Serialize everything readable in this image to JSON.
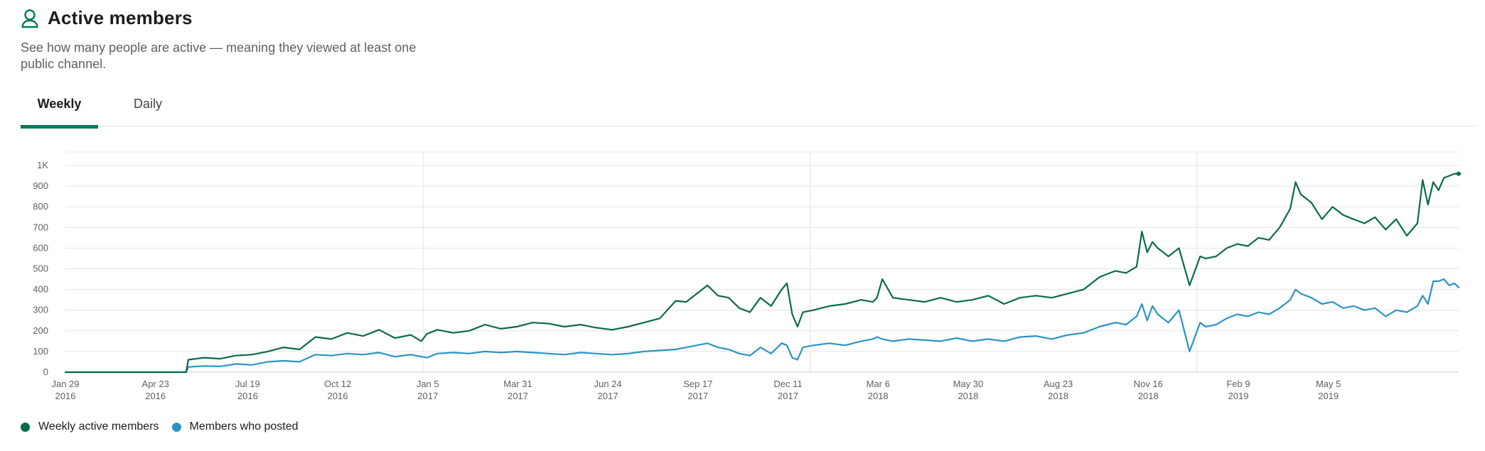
{
  "header": {
    "title": "Active members",
    "icon": "user-icon",
    "subtitle": "See how many people are active — meaning they viewed at least one public channel."
  },
  "tabs": [
    {
      "label": "Weekly",
      "active": true
    },
    {
      "label": "Daily",
      "active": false
    }
  ],
  "colors": {
    "weekly": "#0b6b4a",
    "posted": "#2b94c3",
    "accent": "#007a5a"
  },
  "chart_data": {
    "type": "line",
    "title": "",
    "xlabel": "",
    "ylabel": "",
    "ylim": [
      0,
      1000
    ],
    "y_ticks": [
      {
        "value": 0,
        "label": "0"
      },
      {
        "value": 100,
        "label": "100"
      },
      {
        "value": 200,
        "label": "200"
      },
      {
        "value": 300,
        "label": "300"
      },
      {
        "value": 400,
        "label": "400"
      },
      {
        "value": 500,
        "label": "500"
      },
      {
        "value": 600,
        "label": "600"
      },
      {
        "value": 700,
        "label": "700"
      },
      {
        "value": 800,
        "label": "800"
      },
      {
        "value": 900,
        "label": "900"
      },
      {
        "value": 1000,
        "label": "1K"
      }
    ],
    "xlim": [
      "2016-01-29",
      "2019-09-05"
    ],
    "x_ticks": [
      {
        "date": "2016-01-29",
        "line1": "Jan 29",
        "line2": "2016"
      },
      {
        "date": "2016-04-23",
        "line1": "Apr 23",
        "line2": "2016"
      },
      {
        "date": "2016-07-19",
        "line1": "Jul 19",
        "line2": "2016"
      },
      {
        "date": "2016-10-12",
        "line1": "Oct 12",
        "line2": "2016"
      },
      {
        "date": "2017-01-05",
        "line1": "Jan 5",
        "line2": "2017"
      },
      {
        "date": "2017-03-31",
        "line1": "Mar 31",
        "line2": "2017"
      },
      {
        "date": "2017-06-24",
        "line1": "Jun 24",
        "line2": "2017"
      },
      {
        "date": "2017-09-17",
        "line1": "Sep 17",
        "line2": "2017"
      },
      {
        "date": "2017-12-11",
        "line1": "Dec 11",
        "line2": "2017"
      },
      {
        "date": "2018-03-06",
        "line1": "Mar 6",
        "line2": "2018"
      },
      {
        "date": "2018-05-30",
        "line1": "May 30",
        "line2": "2018"
      },
      {
        "date": "2018-08-23",
        "line1": "Aug 23",
        "line2": "2018"
      },
      {
        "date": "2018-11-16",
        "line1": "Nov 16",
        "line2": "2018"
      },
      {
        "date": "2019-02-09",
        "line1": "Feb 9",
        "line2": "2019"
      },
      {
        "date": "2019-05-05",
        "line1": "May 5",
        "line2": "2019"
      }
    ],
    "year_lines": [
      "2017-01-01",
      "2018-01-01",
      "2019-01-01"
    ],
    "grid": true,
    "legend_position": "bottom-left",
    "series": [
      {
        "name": "Weekly active members",
        "x": [
          "2016-01-29",
          "2016-02-28",
          "2016-03-29",
          "2016-04-28",
          "2016-05-22",
          "2016-05-24",
          "2016-06-08",
          "2016-06-23",
          "2016-07-08",
          "2016-07-23",
          "2016-08-07",
          "2016-08-22",
          "2016-09-06",
          "2016-09-21",
          "2016-10-06",
          "2016-10-21",
          "2016-11-05",
          "2016-11-20",
          "2016-12-05",
          "2016-12-20",
          "2016-12-30",
          "2017-01-04",
          "2017-01-14",
          "2017-01-29",
          "2017-02-13",
          "2017-02-28",
          "2017-03-15",
          "2017-03-30",
          "2017-04-14",
          "2017-04-29",
          "2017-05-14",
          "2017-05-29",
          "2017-06-13",
          "2017-06-28",
          "2017-07-13",
          "2017-07-28",
          "2017-08-12",
          "2017-08-27",
          "2017-09-06",
          "2017-09-16",
          "2017-09-26",
          "2017-10-06",
          "2017-10-16",
          "2017-10-26",
          "2017-11-05",
          "2017-11-15",
          "2017-11-25",
          "2017-12-05",
          "2017-12-10",
          "2017-12-15",
          "2017-12-20",
          "2017-12-25",
          "2018-01-04",
          "2018-01-19",
          "2018-02-03",
          "2018-02-18",
          "2018-03-01",
          "2018-03-05",
          "2018-03-10",
          "2018-03-20",
          "2018-04-04",
          "2018-04-19",
          "2018-05-04",
          "2018-05-19",
          "2018-06-03",
          "2018-06-18",
          "2018-07-03",
          "2018-07-18",
          "2018-08-02",
          "2018-08-17",
          "2018-09-01",
          "2018-09-16",
          "2018-10-01",
          "2018-10-16",
          "2018-10-26",
          "2018-11-05",
          "2018-11-10",
          "2018-11-15",
          "2018-11-20",
          "2018-11-25",
          "2018-12-05",
          "2018-12-15",
          "2018-12-25",
          "2019-01-04",
          "2019-01-09",
          "2019-01-19",
          "2019-01-29",
          "2019-02-08",
          "2019-02-18",
          "2019-02-28",
          "2019-03-10",
          "2019-03-20",
          "2019-03-30",
          "2019-04-04",
          "2019-04-09",
          "2019-04-19",
          "2019-04-29",
          "2019-05-09",
          "2019-05-19",
          "2019-05-29",
          "2019-06-08",
          "2019-06-18",
          "2019-06-28",
          "2019-07-08",
          "2019-07-18",
          "2019-07-28",
          "2019-08-02",
          "2019-08-07",
          "2019-08-12",
          "2019-08-17",
          "2019-08-22",
          "2019-08-27",
          "2019-09-01",
          "2019-09-05"
        ],
        "values": [
          0,
          0,
          0,
          0,
          0,
          60,
          70,
          65,
          80,
          85,
          100,
          120,
          110,
          170,
          160,
          190,
          175,
          205,
          165,
          180,
          150,
          185,
          205,
          190,
          200,
          230,
          210,
          220,
          240,
          235,
          220,
          230,
          215,
          205,
          220,
          240,
          260,
          345,
          340,
          380,
          420,
          370,
          360,
          310,
          290,
          360,
          320,
          400,
          430,
          280,
          220,
          290,
          300,
          320,
          330,
          350,
          340,
          360,
          450,
          360,
          350,
          340,
          360,
          340,
          350,
          370,
          330,
          360,
          370,
          360,
          380,
          400,
          460,
          490,
          480,
          510,
          680,
          580,
          630,
          600,
          560,
          600,
          420,
          560,
          550,
          560,
          600,
          620,
          610,
          650,
          640,
          700,
          790,
          920,
          860,
          820,
          740,
          800,
          760,
          740,
          720,
          750,
          690,
          740,
          660,
          720,
          930,
          810,
          920,
          880,
          940,
          950,
          960,
          960
        ]
      },
      {
        "name": "Members who posted",
        "x": [
          "2016-01-29",
          "2016-02-28",
          "2016-03-29",
          "2016-04-28",
          "2016-05-22",
          "2016-05-24",
          "2016-06-08",
          "2016-06-23",
          "2016-07-08",
          "2016-07-23",
          "2016-08-07",
          "2016-08-22",
          "2016-09-06",
          "2016-09-21",
          "2016-10-06",
          "2016-10-21",
          "2016-11-05",
          "2016-11-20",
          "2016-12-05",
          "2016-12-20",
          "2016-12-30",
          "2017-01-04",
          "2017-01-14",
          "2017-01-29",
          "2017-02-13",
          "2017-02-28",
          "2017-03-15",
          "2017-03-30",
          "2017-04-14",
          "2017-04-29",
          "2017-05-14",
          "2017-05-29",
          "2017-06-13",
          "2017-06-28",
          "2017-07-13",
          "2017-07-28",
          "2017-08-12",
          "2017-08-27",
          "2017-09-06",
          "2017-09-16",
          "2017-09-26",
          "2017-10-06",
          "2017-10-16",
          "2017-10-26",
          "2017-11-05",
          "2017-11-15",
          "2017-11-25",
          "2017-12-05",
          "2017-12-10",
          "2017-12-15",
          "2017-12-20",
          "2017-12-25",
          "2018-01-04",
          "2018-01-19",
          "2018-02-03",
          "2018-02-18",
          "2018-03-01",
          "2018-03-05",
          "2018-03-10",
          "2018-03-20",
          "2018-04-04",
          "2018-04-19",
          "2018-05-04",
          "2018-05-19",
          "2018-06-03",
          "2018-06-18",
          "2018-07-03",
          "2018-07-18",
          "2018-08-02",
          "2018-08-17",
          "2018-09-01",
          "2018-09-16",
          "2018-10-01",
          "2018-10-16",
          "2018-10-26",
          "2018-11-05",
          "2018-11-10",
          "2018-11-15",
          "2018-11-20",
          "2018-11-25",
          "2018-12-05",
          "2018-12-15",
          "2018-12-25",
          "2019-01-04",
          "2019-01-09",
          "2019-01-19",
          "2019-01-29",
          "2019-02-08",
          "2019-02-18",
          "2019-02-28",
          "2019-03-10",
          "2019-03-20",
          "2019-03-30",
          "2019-04-04",
          "2019-04-09",
          "2019-04-19",
          "2019-04-29",
          "2019-05-09",
          "2019-05-19",
          "2019-05-29",
          "2019-06-08",
          "2019-06-18",
          "2019-06-28",
          "2019-07-08",
          "2019-07-18",
          "2019-07-28",
          "2019-08-02",
          "2019-08-07",
          "2019-08-12",
          "2019-08-17",
          "2019-08-22",
          "2019-08-27",
          "2019-09-01",
          "2019-09-05"
        ],
        "values": [
          0,
          0,
          0,
          0,
          0,
          25,
          30,
          28,
          40,
          35,
          50,
          55,
          50,
          85,
          80,
          90,
          85,
          95,
          75,
          85,
          75,
          70,
          90,
          95,
          90,
          100,
          95,
          100,
          95,
          90,
          85,
          95,
          90,
          85,
          90,
          100,
          105,
          110,
          120,
          130,
          140,
          120,
          110,
          90,
          80,
          120,
          90,
          140,
          130,
          70,
          60,
          120,
          130,
          140,
          130,
          150,
          160,
          170,
          160,
          150,
          160,
          155,
          150,
          165,
          150,
          160,
          150,
          170,
          175,
          160,
          180,
          190,
          220,
          240,
          230,
          270,
          330,
          250,
          320,
          280,
          240,
          300,
          100,
          240,
          220,
          230,
          260,
          280,
          270,
          290,
          280,
          310,
          350,
          400,
          380,
          360,
          330,
          340,
          310,
          320,
          300,
          310,
          270,
          300,
          290,
          320,
          370,
          330,
          440,
          440,
          450,
          420,
          430,
          410
        ]
      }
    ]
  }
}
